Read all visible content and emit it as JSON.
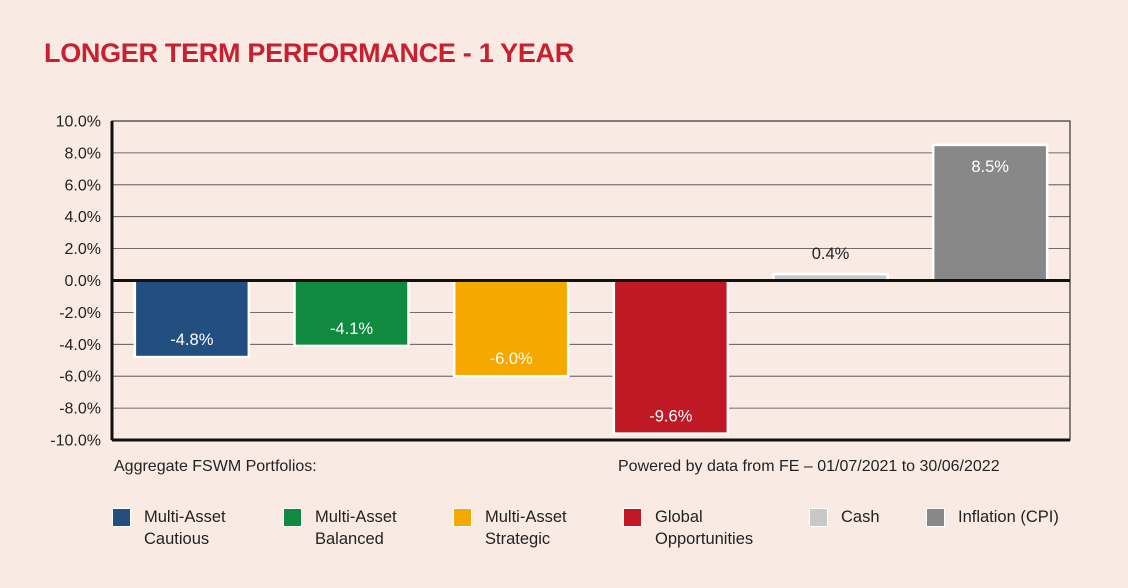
{
  "title": "LONGER TERM PERFORMANCE - 1 YEAR",
  "note_left": "Aggregate FSWM Portfolios:",
  "note_right": "Powered by data from FE – 01/07/2021 to 30/06/2022",
  "chart_data": {
    "type": "bar",
    "title": "LONGER TERM PERFORMANCE - 1 YEAR",
    "xlabel": "",
    "ylabel": "",
    "ylim": [
      -10,
      10
    ],
    "yticks": [
      10,
      8,
      6,
      4,
      2,
      0,
      -2,
      -4,
      -6,
      -8,
      -10
    ],
    "ytick_labels": [
      "10.0%",
      "8.0%",
      "6.0%",
      "4.0%",
      "2.0%",
      "0.0%",
      "-2.0%",
      "-4.0%",
      "-6.0%",
      "-8.0%",
      "-10.0%"
    ],
    "grid": true,
    "categories": [
      "Multi-Asset Cautious",
      "Multi-Asset Balanced",
      "Multi-Asset Strategic",
      "Global Opportunities",
      "Cash",
      "Inflation (CPI)"
    ],
    "values": [
      -4.8,
      -4.1,
      -6.0,
      -9.6,
      0.4,
      8.5
    ],
    "value_labels": [
      "-4.8%",
      "-4.1%",
      "-6.0%",
      "-9.6%",
      "0.4%",
      "8.5%"
    ],
    "colors": [
      "#234f80",
      "#0f8a3f",
      "#f5a800",
      "#c01824",
      "#c8c8c8",
      "#888888"
    ],
    "legend": [
      {
        "label": "Multi-Asset\nCautious",
        "color": "#234f80"
      },
      {
        "label": "Multi-Asset\nBalanced",
        "color": "#0f8a3f"
      },
      {
        "label": "Multi-Asset\nStrategic",
        "color": "#f5a800"
      },
      {
        "label": "Global\nOpportunities",
        "color": "#c01824"
      },
      {
        "label": "Cash",
        "color": "#c8c8c8"
      },
      {
        "label": "Inflation (CPI)",
        "color": "#888888"
      }
    ],
    "legend_position": "bottom"
  }
}
